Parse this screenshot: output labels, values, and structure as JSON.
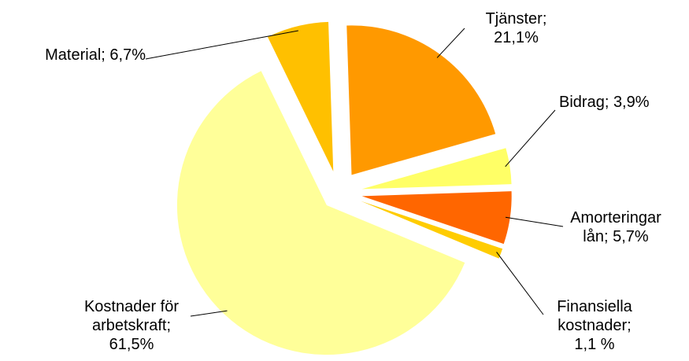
{
  "chart_data": {
    "type": "pie",
    "categories": [
      "Material;",
      "Tjänster;",
      "Bidrag;",
      "Amorteringar lån;",
      "Finansiella kostnader;",
      "Kostnader för arbetskraft;"
    ],
    "values": [
      6.7,
      21.1,
      3.9,
      5.7,
      1.1,
      61.5
    ],
    "value_labels": [
      "6,7%",
      "21,1%",
      "3,9%",
      "5,7%",
      "1,1 %",
      "61,5%"
    ],
    "colors": [
      "#ffc000",
      "#ff9900",
      "#ffff66",
      "#ff6600",
      "#ffcc00",
      "#ffff99"
    ]
  }
}
